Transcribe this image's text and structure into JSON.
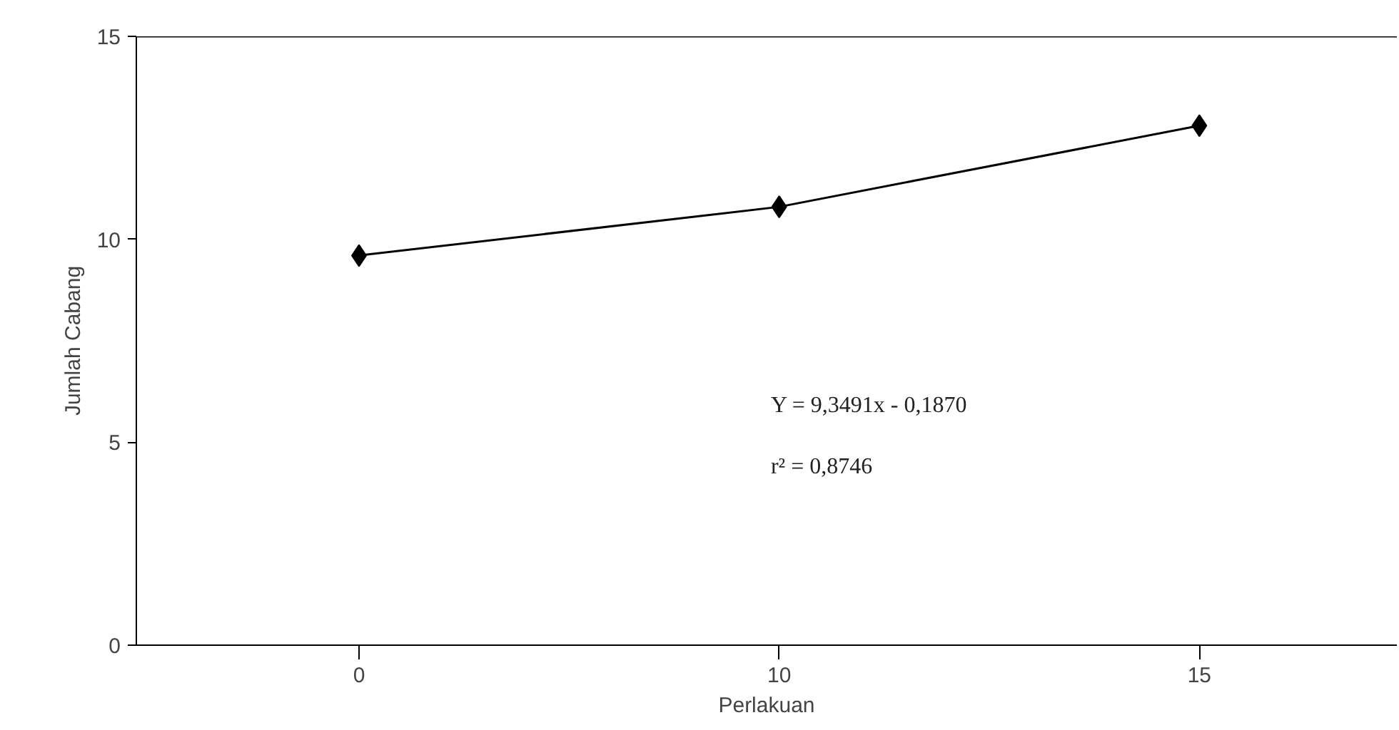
{
  "chart_data": {
    "type": "line",
    "xlabel": "Perlakuan",
    "ylabel": "Jumlah Cabang",
    "categories": [
      "0",
      "10",
      "15"
    ],
    "series": [
      {
        "color": "#000000",
        "values": [
          9.6,
          10.8,
          12.8
        ]
      }
    ],
    "ylim": [
      0,
      15
    ],
    "yticks": [
      0,
      5,
      10,
      15
    ],
    "marker": "diamond",
    "line_style": "solid",
    "grid": false,
    "annotations": [
      "Y = 9,3491x - 0,1870",
      "r² = 0,8746"
    ]
  }
}
